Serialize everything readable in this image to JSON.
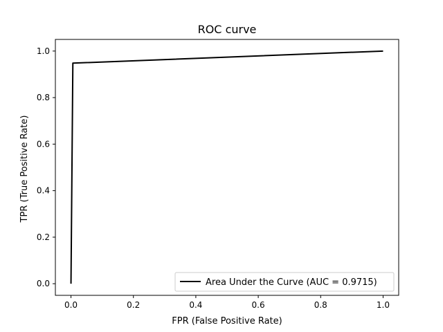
{
  "chart_data": {
    "type": "line",
    "title": "ROC curve",
    "xlabel": "FPR (False Positive Rate)",
    "ylabel": "TPR (True Positive Rate)",
    "xlim": [
      -0.05,
      1.05
    ],
    "ylim": [
      -0.05,
      1.05
    ],
    "xticks": [
      "0.0",
      "0.2",
      "0.4",
      "0.6",
      "0.8",
      "1.0"
    ],
    "yticks": [
      "0.0",
      "0.2",
      "0.4",
      "0.6",
      "0.8",
      "1.0"
    ],
    "grid": false,
    "legend_position": "lower-right",
    "series": [
      {
        "name": "Area Under the Curve (AUC = 0.9715)",
        "color": "#000000",
        "x": [
          0.0,
          0.006,
          1.0
        ],
        "y": [
          0.0,
          0.948,
          1.0
        ]
      }
    ]
  }
}
